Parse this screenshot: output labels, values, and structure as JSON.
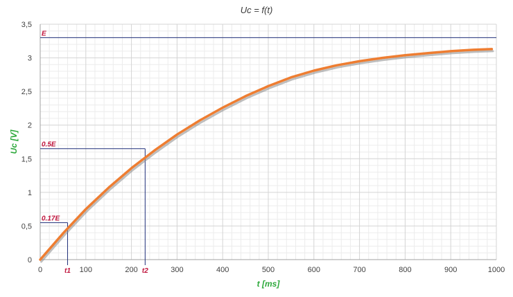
{
  "chart_data": {
    "type": "line",
    "title": "Uc = f(t)",
    "xlabel": "t [ms]",
    "ylabel": "Uc [V]",
    "xlim": [
      0,
      1000
    ],
    "ylim": [
      0,
      3.5
    ],
    "x_ticks": [
      "0",
      "100",
      "200",
      "300",
      "400",
      "500",
      "600",
      "700",
      "800",
      "900",
      "1000"
    ],
    "y_ticks": [
      "0",
      "0,5",
      "1",
      "1,5",
      "2",
      "2,5",
      "3",
      "3,5"
    ],
    "grid": true,
    "series": [
      {
        "x": [
          0,
          50,
          100,
          150,
          200,
          250,
          300,
          350,
          400,
          450,
          500,
          550,
          600,
          650,
          700,
          750,
          800,
          850,
          900,
          950,
          990
        ],
        "y": [
          0,
          0.39,
          0.75,
          1.07,
          1.36,
          1.62,
          1.86,
          2.07,
          2.26,
          2.43,
          2.58,
          2.71,
          2.81,
          2.89,
          2.95,
          3.0,
          3.04,
          3.07,
          3.1,
          3.12,
          3.13
        ]
      }
    ],
    "annotations": {
      "E": {
        "label": "E",
        "y": 3.3
      },
      "half": {
        "label": "0.5E",
        "y": 1.65,
        "x_label": "t2",
        "x": 230
      },
      "first": {
        "label": "0.17E",
        "y": 0.55,
        "x_label": "t1",
        "x": 60
      }
    },
    "colors": {
      "line": "#ee7d31",
      "line_shadow": "#8a8a8a",
      "guide": "#1f2f7a",
      "annotation_text": "#c0143c",
      "axis_label": "#2ca83a"
    }
  }
}
